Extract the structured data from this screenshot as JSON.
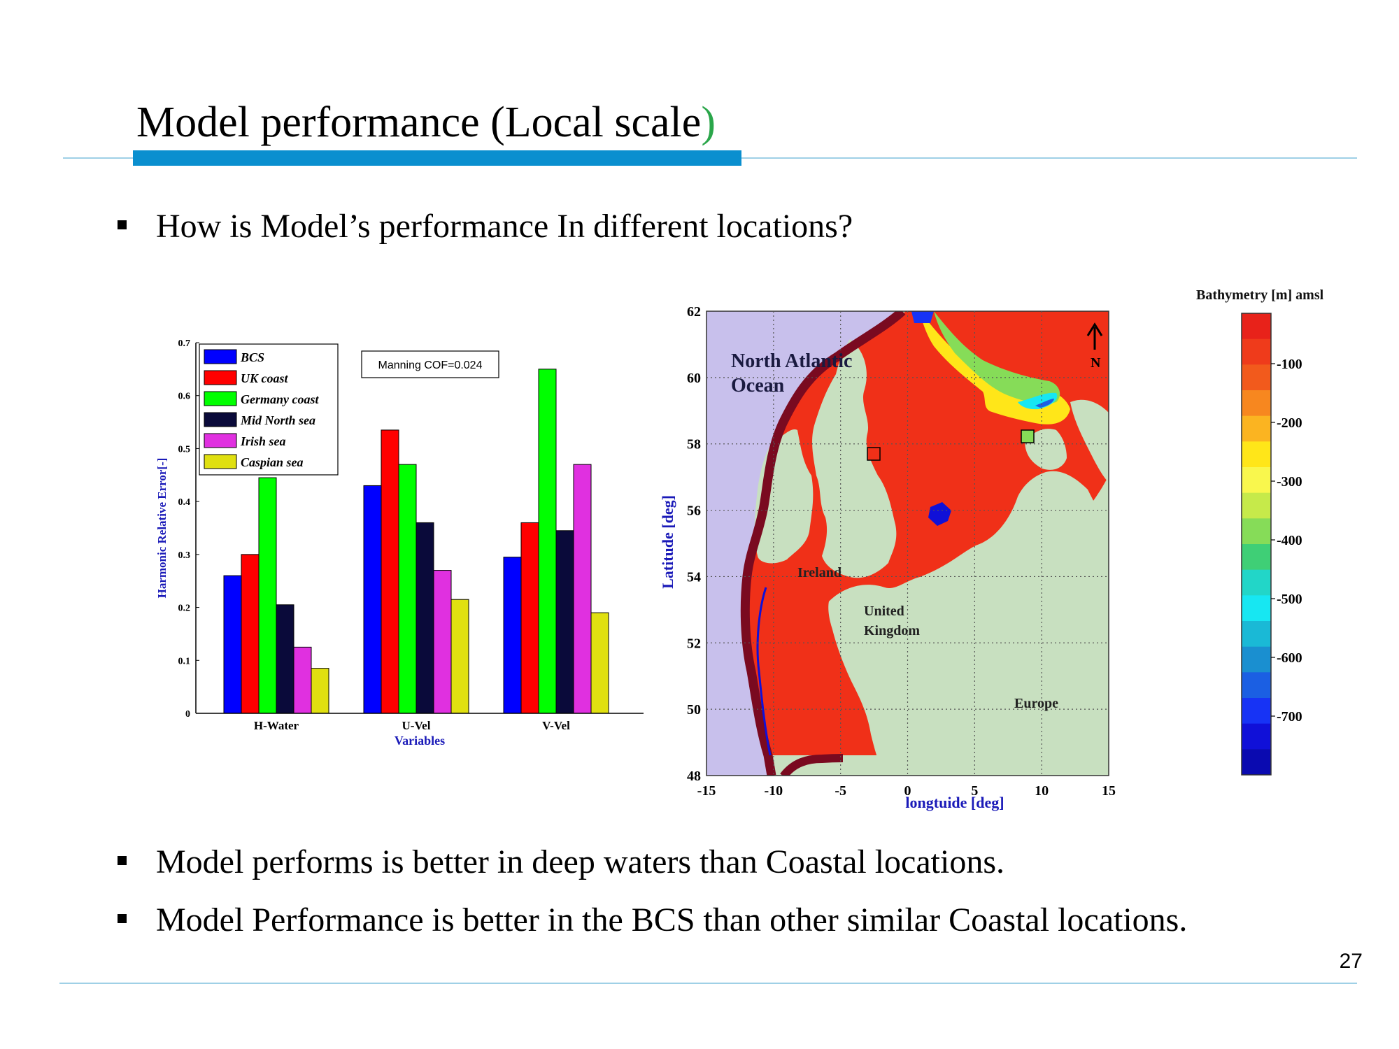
{
  "slide": {
    "title": "Model performance (Local scale",
    "title_paren": ")",
    "question": "How is Model’s performance In different locations?",
    "bullets": [
      "Model performs is better in deep waters than Coastal locations.",
      "Model Performance is better in the BCS than other similar Coastal locations."
    ],
    "page_number": "27"
  },
  "chart_data": {
    "type": "bar",
    "categories": [
      "H-Water",
      "U-Vel",
      "V-Vel"
    ],
    "series": [
      {
        "name": "BCS",
        "color": "#0000ff",
        "values": [
          0.26,
          0.43,
          0.295
        ]
      },
      {
        "name": "UK coast",
        "color": "#ff0000",
        "values": [
          0.3,
          0.535,
          0.36
        ]
      },
      {
        "name": "Germany coast",
        "color": "#00ff00",
        "values": [
          0.445,
          0.47,
          0.65
        ]
      },
      {
        "name": "Mid North sea",
        "color": "#0a0a3a",
        "values": [
          0.205,
          0.36,
          0.345
        ]
      },
      {
        "name": "Irish sea",
        "color": "#e030e0",
        "values": [
          0.125,
          0.27,
          0.47
        ]
      },
      {
        "name": "Caspian sea",
        "color": "#e0e010",
        "values": [
          0.085,
          0.215,
          0.19
        ]
      }
    ],
    "xlabel": "Variables",
    "ylabel": "Harmonic Relative Error[-]",
    "ylim": [
      0,
      0.7
    ],
    "yticks": [
      "0",
      "0.1",
      "0.2",
      "0.3",
      "0.4",
      "0.5",
      "0.6",
      "0.7"
    ],
    "annotation": "Manning COF=0.024",
    "legend_position": "top-left"
  },
  "map": {
    "title": "Bathymetry [m] amsl",
    "xlabel": "longtuide [deg]",
    "ylabel": "Latitude [deg]",
    "xticks": [
      "-15",
      "-10",
      "-5",
      "0",
      "5",
      "10",
      "15"
    ],
    "yticks": [
      "62",
      "60",
      "58",
      "56",
      "54",
      "52",
      "50",
      "48"
    ],
    "labels": {
      "ocean1": "North Atlantic",
      "ocean2": "Ocean",
      "ireland": "Ireland",
      "uk1": "United",
      "uk2": "Kingdom",
      "europe": "Europe",
      "north": "N"
    },
    "colorbar_labels": [
      "-100",
      "-200",
      "-300",
      "-400",
      "-500",
      "-600",
      "-700"
    ],
    "colorbar_colors": [
      "#e8221a",
      "#ef3b1b",
      "#f25a1c",
      "#f7871f",
      "#fbb421",
      "#ffe619",
      "#f9f74d",
      "#c6ea4a",
      "#86dc58",
      "#3fcf76",
      "#22d6c8",
      "#17e7f2",
      "#1ab9d6",
      "#1a8fd0",
      "#1b5fe3",
      "#1733f5",
      "#1010d8",
      "#0a0ab0"
    ],
    "colors": {
      "land": "#c8e0c0",
      "deep_ocean": "#c8c0ec",
      "shelf": "#f03018",
      "boundary": "#7a0a20"
    }
  }
}
